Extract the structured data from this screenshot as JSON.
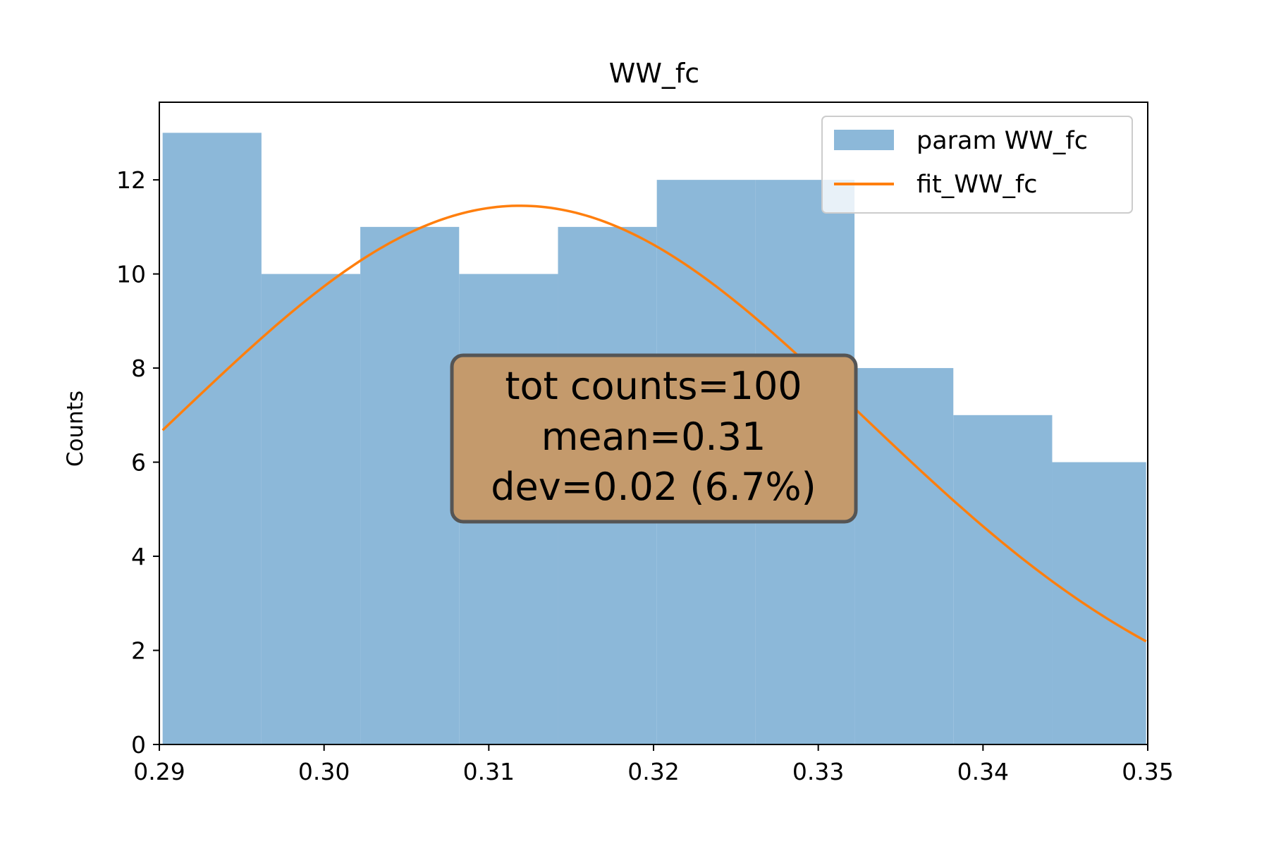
{
  "chart_data": {
    "type": "bar",
    "title": "WW_fc",
    "xlabel": "",
    "ylabel": "Counts",
    "xlim": [
      0.29,
      0.35
    ],
    "ylim": [
      0,
      13.65
    ],
    "xticks": [
      {
        "value": 0.29,
        "label": "0.29"
      },
      {
        "value": 0.3,
        "label": "0.30"
      },
      {
        "value": 0.31,
        "label": "0.31"
      },
      {
        "value": 0.32,
        "label": "0.32"
      },
      {
        "value": 0.33,
        "label": "0.33"
      },
      {
        "value": 0.34,
        "label": "0.34"
      },
      {
        "value": 0.35,
        "label": "0.35"
      }
    ],
    "yticks": [
      {
        "value": 0,
        "label": "0"
      },
      {
        "value": 2,
        "label": "2"
      },
      {
        "value": 4,
        "label": "4"
      },
      {
        "value": 6,
        "label": "6"
      },
      {
        "value": 8,
        "label": "8"
      },
      {
        "value": 10,
        "label": "10"
      },
      {
        "value": 12,
        "label": "12"
      }
    ],
    "grid": false,
    "legend_position": "top-right",
    "series": [
      {
        "name": "param WW_fc",
        "kind": "histogram",
        "color": "#8cb8d9",
        "bin_edges": [
          0.2902,
          0.2962,
          0.3022,
          0.3082,
          0.3142,
          0.3202,
          0.3262,
          0.3322,
          0.3382,
          0.3442,
          0.3499
        ],
        "counts": [
          13,
          10,
          11,
          10,
          11,
          12,
          12,
          8,
          7,
          6
        ]
      },
      {
        "name": "fit_WW_fc",
        "kind": "gaussian-fit",
        "color": "#ff7f0e",
        "peak": 11.45,
        "center": 0.3119,
        "sigma": 0.0209,
        "x_range": [
          0.2902,
          0.3499
        ]
      }
    ],
    "annotation": {
      "lines": [
        "tot counts=100",
        "mean=0.31",
        "dev=0.02 (6.7%)"
      ],
      "box_color": "#c49a6c",
      "edge_color": "#555555"
    }
  }
}
